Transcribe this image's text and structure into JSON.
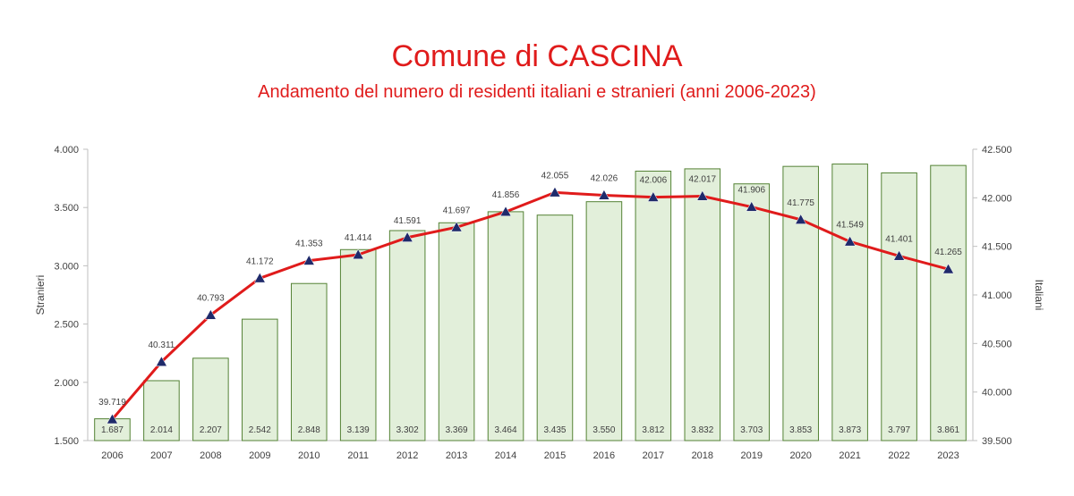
{
  "chart_data": {
    "type": "bar",
    "title": "Comune di CASCINA",
    "subtitle": "Andamento del numero di residenti italiani e stranieri (anni 2006-2023)",
    "categories": [
      "2006",
      "2007",
      "2008",
      "2009",
      "2010",
      "2011",
      "2012",
      "2013",
      "2014",
      "2015",
      "2016",
      "2017",
      "2018",
      "2019",
      "2020",
      "2021",
      "2022",
      "2023"
    ],
    "bars": {
      "axis": "left",
      "values": [
        1687,
        2014,
        2207,
        2542,
        2848,
        3139,
        3302,
        3369,
        3464,
        3435,
        3550,
        3812,
        3832,
        3703,
        3853,
        3873,
        3797,
        3861
      ],
      "labels": [
        "1.687",
        "2.014",
        "2.207",
        "2.542",
        "2.848",
        "3.139",
        "3.302",
        "3.369",
        "3.464",
        "3.435",
        "3.550",
        "3.812",
        "3.832",
        "3.703",
        "3.853",
        "3.873",
        "3.797",
        "3.861"
      ],
      "fill": "#e2efda",
      "stroke": "#548235"
    },
    "line": {
      "axis": "right",
      "values": [
        39719,
        40311,
        40793,
        41172,
        41353,
        41414,
        41591,
        41697,
        41856,
        42055,
        42026,
        42006,
        42017,
        41906,
        41775,
        41549,
        41401,
        41265
      ],
      "labels": [
        "39.719",
        "40.311",
        "40.793",
        "41.172",
        "41.353",
        "41.414",
        "41.591",
        "41.697",
        "41.856",
        "42.055",
        "42.026",
        "42.006",
        "42.017",
        "41.906",
        "41.775",
        "41.549",
        "41.401",
        "41.265"
      ],
      "color": "#e01b1b",
      "marker_color": "#1f2a6b",
      "marker": "triangle"
    },
    "y_left": {
      "label": "Stranieri",
      "min": 1500,
      "max": 4000,
      "ticks": [
        "1.500",
        "2.000",
        "2.500",
        "3.000",
        "3.500",
        "4.000"
      ]
    },
    "y_right": {
      "label": "Italiani",
      "min": 39500,
      "max": 42500,
      "ticks": [
        "39.500",
        "40.000",
        "40.500",
        "41.000",
        "41.500",
        "42.000",
        "42.500"
      ]
    },
    "grid": false,
    "legend": "none"
  }
}
